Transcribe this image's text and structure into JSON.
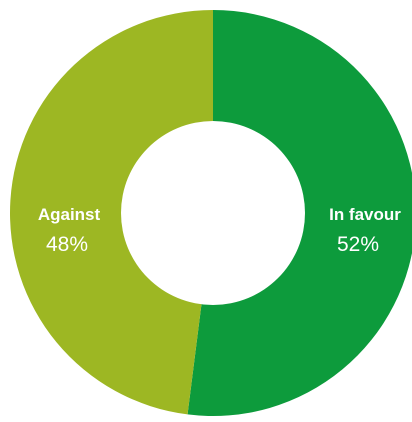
{
  "chart_data": {
    "type": "pie",
    "style": "donut",
    "categories": [
      "In favour",
      "Against"
    ],
    "values": [
      52,
      48
    ],
    "value_labels": [
      "52%",
      "48%"
    ],
    "colors": [
      "#0d9b3c",
      "#9db723"
    ],
    "title": "",
    "legend": "none"
  }
}
